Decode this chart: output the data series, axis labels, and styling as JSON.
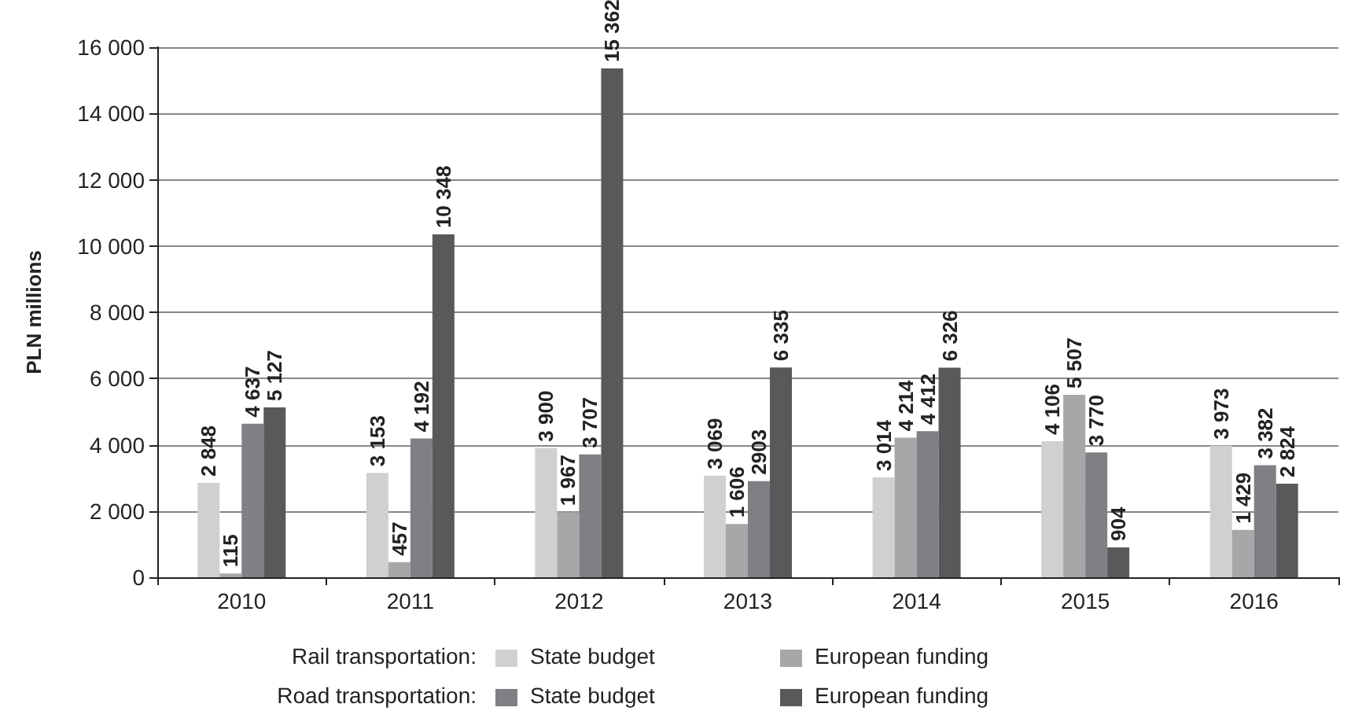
{
  "chart_data": {
    "type": "bar",
    "ylabel": "PLN millions",
    "categories": [
      "2010",
      "2011",
      "2012",
      "2013",
      "2014",
      "2015",
      "2016"
    ],
    "series": [
      {
        "name": "State budget",
        "color": "#d0d0d2",
        "values": [
          2848,
          3153,
          3900,
          3069,
          3014,
          4106,
          3973
        ],
        "value_labels": [
          "2 848",
          "3 153",
          "3 900",
          "3 069",
          "3 014",
          "4 106",
          "3 973"
        ]
      },
      {
        "name": "European funding",
        "color": "#a6a7a9",
        "values": [
          115,
          457,
          1967,
          1606,
          4214,
          5507,
          1429
        ],
        "value_labels": [
          "115",
          "457",
          "1 967",
          "1 606",
          "4 214",
          "5 507",
          "1 429"
        ]
      },
      {
        "name": "State budget",
        "color": "#7f8083",
        "values": [
          4637,
          4192,
          3707,
          2903,
          4412,
          3770,
          3382
        ],
        "value_labels": [
          "4 637",
          "4 192",
          "3 707",
          "2903",
          "4 412",
          "3 770",
          "3 382"
        ]
      },
      {
        "name": "European funding",
        "color": "#58595b",
        "values": [
          5127,
          10348,
          15362,
          6335,
          6326,
          904,
          2824
        ],
        "value_labels": [
          "5 127",
          "10 348",
          "15 362",
          "6 335",
          "6 326",
          "904",
          "2 824"
        ]
      }
    ],
    "annotations": [
      "Rail transportation:",
      "Road transportation:"
    ],
    "ylim": [
      0,
      16000
    ],
    "yticks": [
      {
        "value": 0,
        "label": "0"
      },
      {
        "value": 2000,
        "label": "2 000"
      },
      {
        "value": 4000,
        "label": "4 000"
      },
      {
        "value": 6000,
        "label": "6 000"
      },
      {
        "value": 8000,
        "label": "8 000"
      },
      {
        "value": 10000,
        "label": "10 000"
      },
      {
        "value": 12000,
        "label": "12 000"
      },
      {
        "value": 14000,
        "label": "14 000"
      },
      {
        "value": 16000,
        "label": "16 000"
      }
    ],
    "grid": "y",
    "legend": "bottom"
  }
}
